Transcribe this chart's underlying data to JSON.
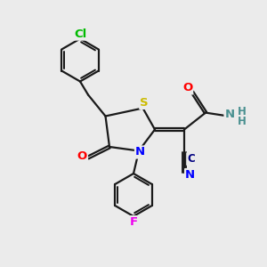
{
  "background_color": "#ebebeb",
  "bond_color": "#1a1a1a",
  "atom_colors": {
    "Cl": "#00bb00",
    "S": "#ccbb00",
    "N": "#0000ff",
    "O": "#ff0000",
    "F": "#ee00ee",
    "C": "#000080",
    "NH_N": "#4a9090",
    "NH_H": "#4a9090"
  },
  "lw": 1.6,
  "fs": 9.5
}
